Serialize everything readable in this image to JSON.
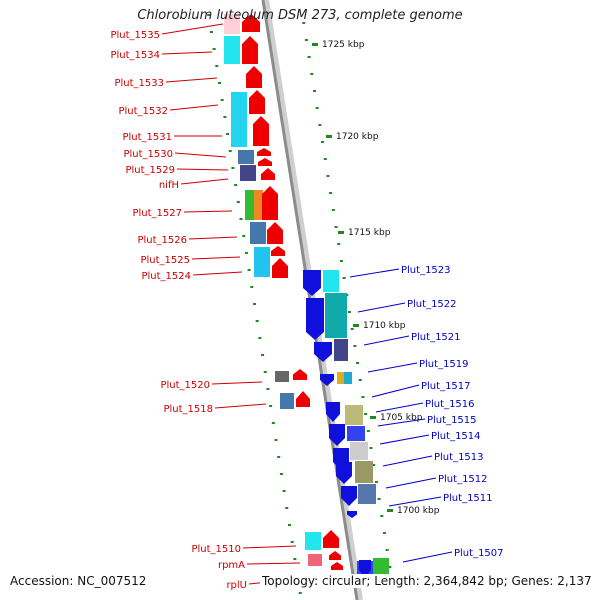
{
  "title": "Chlorobium luteolum DSM 273, complete genome",
  "accession": "Accession: NC_007512",
  "topology": "Topology: circular; Length: 2,364,842 bp; Genes: 2,137",
  "colors": {
    "left_label": "#cc0000",
    "right_label": "#0000cc",
    "forward_arrow": "#ee0000",
    "reverse_arrow": "#1010dd",
    "axis": "#999999",
    "tick": "#228822"
  },
  "chart_data": {
    "type": "diagram",
    "scale_labels": [
      "1725 kbp",
      "1720 kbp",
      "1715 kbp",
      "1710 kbp",
      "1705 kbp",
      "1700 kbp"
    ],
    "forward_genes": [
      "Plut_1535",
      "Plut_1534",
      "Plut_1533",
      "Plut_1532",
      "Plut_1531",
      "Plut_1530",
      "Plut_1529",
      "nifH",
      "Plut_1527",
      "Plut_1526",
      "Plut_1525",
      "Plut_1524",
      "Plut_1520",
      "Plut_1518",
      "Plut_1510",
      "rpmA",
      "rplU"
    ],
    "reverse_genes": [
      "Plut_1523",
      "Plut_1522",
      "Plut_1521",
      "Plut_1519",
      "Plut_1517",
      "Plut_1516",
      "Plut_1515",
      "Plut_1514",
      "Plut_1513",
      "Plut_1512",
      "Plut_1511",
      "Plut_1507"
    ]
  }
}
